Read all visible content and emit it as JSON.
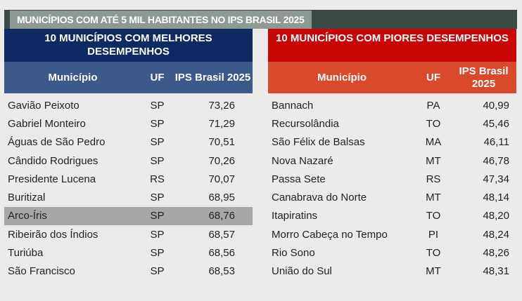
{
  "title": "MUNICÍPIOS COM ATÉ 5 MIL HABITANTES NO IPS BRASIL 2025",
  "best": {
    "heading": "10 MUNICÍPIOS COM MELHORES DESEMPENHOS",
    "columns": [
      "Município",
      "UF",
      "IPS Brasil 2025"
    ],
    "rows": [
      [
        "Gavião Peixoto",
        "SP",
        "73,26"
      ],
      [
        "Gabriel Monteiro",
        "SP",
        "71,29"
      ],
      [
        "Águas de São Pedro",
        "SP",
        "70,51"
      ],
      [
        "Cândido Rodrigues",
        "SP",
        "70,26"
      ],
      [
        "Presidente Lucena",
        "RS",
        "70,07"
      ],
      [
        "Buritizal",
        "SP",
        "68,95"
      ],
      [
        "Arco-Íris",
        "SP",
        "68,76"
      ],
      [
        "Ribeirão dos Índios",
        "SP",
        "68,57"
      ],
      [
        "Turiúba",
        "SP",
        "68,56"
      ],
      [
        "São Francisco",
        "SP",
        "68,53"
      ]
    ],
    "highlight_index": 6
  },
  "worst": {
    "heading": "10 MUNICÍPIOS COM PIORES DESEMPENHOS",
    "columns": [
      "Município",
      "UF",
      "IPS Brasil 2025"
    ],
    "rows": [
      [
        "Bannach",
        "PA",
        "40,99"
      ],
      [
        "Recursolândia",
        "TO",
        "45,46"
      ],
      [
        "São Félix de Balsas",
        "MA",
        "46,11"
      ],
      [
        "Nova Nazaré",
        "MT",
        "46,78"
      ],
      [
        "Passa Sete",
        "RS",
        "47,34"
      ],
      [
        "Canabrava do Norte",
        "MT",
        "48,14"
      ],
      [
        "Itapiratins",
        "TO",
        "48,20"
      ],
      [
        "Morro Cabeça no Tempo",
        "PI",
        "48,24"
      ],
      [
        "Rio Sono",
        "TO",
        "48,26"
      ],
      [
        "União do Sul",
        "MT",
        "48,31"
      ]
    ]
  }
}
